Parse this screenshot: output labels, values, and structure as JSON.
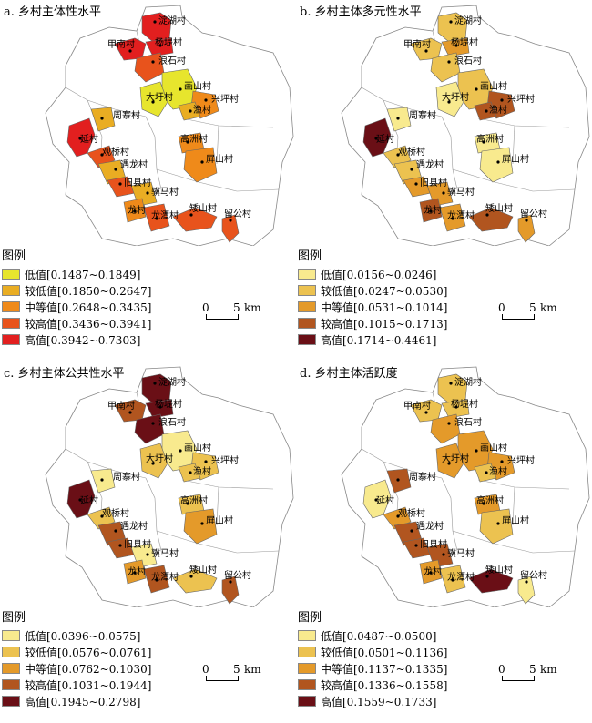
{
  "panels": [
    {
      "title": "a. 乡村主体性水平",
      "legend_title": "图例",
      "legend": [
        {
          "label": "低值[0.1487~0.1849]",
          "color": "#e7e52d"
        },
        {
          "label": "较低值[0.1850~0.2647]",
          "color": "#e9ad23"
        },
        {
          "label": "中等值[0.2648~0.3435]",
          "color": "#ef8a1a"
        },
        {
          "label": "较高值[0.3436~0.3941]",
          "color": "#e8531c"
        },
        {
          "label": "高值[0.3942~0.7303]",
          "color": "#e21f1f"
        }
      ],
      "scale": {
        "zero": "0",
        "five": "5",
        "unit": "km"
      },
      "classes": {
        "淀湖村": 4,
        "甲南村": 4,
        "杨堤村": 4,
        "浪石村": 3,
        "画山村": 0,
        "大圩村": 0,
        "兴坪村": 2,
        "渔村": 1,
        "周寨村": 1,
        "延村": 4,
        "观桥村": 3,
        "遇龙村": 1,
        "旧县村": 3,
        "骥马村": 1,
        "高洲村": 2,
        "屏山村": 2,
        "龙村": 2,
        "龙潭村": 3,
        "矮山村": 3,
        "留公村": 3
      }
    },
    {
      "title": "b. 乡村主体多元性水平",
      "legend_title": "图例",
      "legend": [
        {
          "label": "低值[0.0156~0.0246]",
          "color": "#f8ea8e"
        },
        {
          "label": "较低值[0.0247~0.0530]",
          "color": "#ecc250"
        },
        {
          "label": "中等值[0.0531~0.1014]",
          "color": "#e49a2a"
        },
        {
          "label": "较高值[0.1015~0.1713]",
          "color": "#b1551f"
        },
        {
          "label": "高值[0.1714~0.4461]",
          "color": "#6a0f16"
        }
      ],
      "scale": {
        "zero": "0",
        "five": "5",
        "unit": "km"
      },
      "classes": {
        "淀湖村": 1,
        "甲南村": 1,
        "杨堤村": 2,
        "浪石村": 1,
        "画山村": 1,
        "大圩村": 0,
        "兴坪村": 3,
        "渔村": 3,
        "周寨村": 0,
        "延村": 4,
        "观桥村": 1,
        "遇龙村": 1,
        "旧县村": 2,
        "骥马村": 2,
        "高洲村": 0,
        "屏山村": 0,
        "龙村": 3,
        "龙潭村": 2,
        "矮山村": 3,
        "留公村": 2
      }
    },
    {
      "title": "c. 乡村主体公共性水平",
      "legend_title": "图例",
      "legend": [
        {
          "label": "低值[0.0396~0.0575]",
          "color": "#f8ea8e"
        },
        {
          "label": "较低值[0.0576~0.0761]",
          "color": "#ecc250"
        },
        {
          "label": "中等值[0.0762~0.1030]",
          "color": "#e49a2a"
        },
        {
          "label": "较高值[0.1031~0.1944]",
          "color": "#b1551f"
        },
        {
          "label": "高值[0.1945~0.2798]",
          "color": "#6a0f16"
        }
      ],
      "scale": {
        "zero": "0",
        "five": "5",
        "unit": "km"
      },
      "classes": {
        "淀湖村": 4,
        "甲南村": 3,
        "杨堤村": 4,
        "浪石村": 4,
        "画山村": 0,
        "大圩村": 1,
        "兴坪村": 1,
        "渔村": 1,
        "周寨村": 0,
        "延村": 4,
        "观桥村": 1,
        "遇龙村": 3,
        "旧县村": 3,
        "骥马村": 0,
        "高洲村": 1,
        "屏山村": 2,
        "龙村": 2,
        "龙潭村": 3,
        "矮山村": 1,
        "留公村": 3
      }
    },
    {
      "title": "d. 乡村主体活跃度",
      "legend_title": "图例",
      "legend": [
        {
          "label": "低值[0.0487~0.0500]",
          "color": "#f8ea8e"
        },
        {
          "label": "较低值[0.0501~0.1136]",
          "color": "#ecc250"
        },
        {
          "label": "中等值[0.1137~0.1335]",
          "color": "#e49a2a"
        },
        {
          "label": "较高值[0.1336~0.1558]",
          "color": "#b1551f"
        },
        {
          "label": "高值[0.1559~0.1733]",
          "color": "#6a0f16"
        }
      ],
      "scale": {
        "zero": "0",
        "five": "5",
        "unit": "km"
      },
      "classes": {
        "淀湖村": 1,
        "甲南村": 1,
        "杨堤村": 1,
        "浪石村": 2,
        "画山村": 2,
        "大圩村": 2,
        "兴坪村": 2,
        "渔村": 1,
        "周寨村": 3,
        "延村": 0,
        "观桥村": 2,
        "遇龙村": 3,
        "旧县村": 3,
        "骥马村": 3,
        "高洲村": 2,
        "屏山村": 1,
        "龙村": 2,
        "龙潭村": 1,
        "矮山村": 4,
        "留公村": 0
      }
    }
  ],
  "villages": [
    {
      "name": "淀湖村"
    },
    {
      "name": "甲南村"
    },
    {
      "name": "杨堤村"
    },
    {
      "name": "浪石村"
    },
    {
      "name": "画山村"
    },
    {
      "name": "大圩村"
    },
    {
      "name": "兴坪村"
    },
    {
      "name": "渔村"
    },
    {
      "name": "周寨村"
    },
    {
      "name": "延村"
    },
    {
      "name": "观桥村"
    },
    {
      "name": "遇龙村"
    },
    {
      "name": "旧县村"
    },
    {
      "name": "骥马村"
    },
    {
      "name": "高洲村"
    },
    {
      "name": "屏山村"
    },
    {
      "name": "龙村"
    },
    {
      "name": "龙潭村"
    },
    {
      "name": "矮山村"
    },
    {
      "name": "留公村"
    }
  ]
}
